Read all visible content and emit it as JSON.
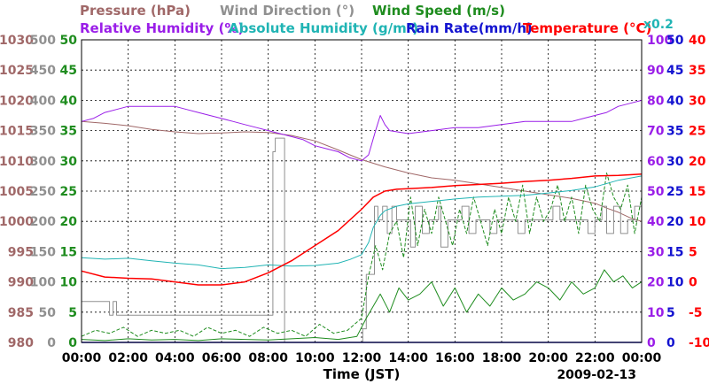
{
  "chart_data": {
    "type": "line",
    "date_label": "2009-02-13",
    "xlabel": "Time (JST)",
    "x_range": [
      0,
      24
    ],
    "x_ticks": [
      "00:00",
      "02:00",
      "04:00",
      "06:00",
      "08:00",
      "10:00",
      "12:00",
      "14:00",
      "16:00",
      "18:00",
      "20:00",
      "22:00",
      "00:00"
    ],
    "legend_rows": [
      [
        {
          "text": "Pressure (hPa)",
          "color": "#a06868"
        },
        {
          "text": "Wind Direction (°)",
          "color": "#909090"
        },
        {
          "text": "Wind Speed (m/s)",
          "color": "#1e8c1e"
        }
      ],
      [
        {
          "text": "Relative Humidity (%)",
          "color": "#9a1ee8"
        },
        {
          "text": "Absolute Humidity (g/m³)",
          "color": "#20b4b4"
        },
        {
          "text": "Rain Rate(mm/h)",
          "color": "#1414d0"
        },
        {
          "text": "Temperature (°C)",
          "color": "#ff0000"
        }
      ]
    ],
    "abs_humidity_scale_note": "x0.2",
    "axes": [
      {
        "name": "Pressure (hPa)",
        "side": "left",
        "color": "#a06868",
        "min": 980,
        "max": 1030,
        "ticks": [
          "980",
          "985",
          "990",
          "995",
          "1000",
          "1005",
          "1010",
          "1015",
          "1020",
          "1025",
          "1030"
        ]
      },
      {
        "name": "Wind Direction (°)",
        "side": "left",
        "color": "#909090",
        "min": 0,
        "max": 500,
        "ticks": [
          "0",
          "50",
          "100",
          "150",
          "200",
          "250",
          "300",
          "350",
          "400",
          "450",
          "500"
        ]
      },
      {
        "name": "Wind Speed (m/s)",
        "side": "left",
        "color": "#1e8c1e",
        "min": 0,
        "max": 50,
        "ticks": [
          "0",
          "5",
          "10",
          "15",
          "20",
          "25",
          "30",
          "35",
          "40",
          "45",
          "50"
        ]
      },
      {
        "name": "Relative Humidity (%)",
        "side": "right",
        "color": "#9a1ee8",
        "min": 0,
        "max": 100,
        "ticks": [
          "0",
          "10",
          "20",
          "30",
          "40",
          "50",
          "60",
          "70",
          "80",
          "90",
          "100"
        ]
      },
      {
        "name": "Rain Rate (mm/h)",
        "side": "right",
        "color": "#1414d0",
        "min": 0,
        "max": 50,
        "ticks": [
          "0",
          "5",
          "10",
          "15",
          "20",
          "25",
          "30",
          "35",
          "40",
          "45",
          "50"
        ]
      },
      {
        "name": "Temperature (°C)",
        "side": "right",
        "color": "#ff0000",
        "min": -10,
        "max": 40,
        "ticks": [
          "-10",
          "-5",
          "0",
          "5",
          "10",
          "15",
          "20",
          "25",
          "30",
          "35",
          "40"
        ]
      }
    ],
    "series": [
      {
        "name": "Pressure (hPa)",
        "axis": 0,
        "color": "#a06868",
        "step": false,
        "width": 1,
        "x": [
          0,
          1,
          2,
          3,
          4,
          5,
          6,
          7,
          8,
          9,
          10,
          11,
          11.5,
          12,
          13,
          14,
          15,
          16,
          17,
          18,
          19,
          20,
          21,
          22,
          22.5,
          23,
          23.5,
          24
        ],
        "y": [
          1016.5,
          1016.2,
          1015.8,
          1015.2,
          1014.8,
          1014.5,
          1014.6,
          1014.8,
          1014.7,
          1014.2,
          1013.3,
          1011.8,
          1011,
          1010.2,
          1009,
          1008,
          1007.2,
          1006.8,
          1006.2,
          1005.6,
          1005,
          1004.4,
          1003.8,
          1003,
          1002.2,
          1001.5,
          1000.6,
          1000
        ]
      },
      {
        "name": "Wind Direction (°)",
        "axis": 1,
        "color": "#909090",
        "step": true,
        "width": 1,
        "x": [
          0,
          0.9,
          1.2,
          1.35,
          1.5,
          1.7,
          8.2,
          8.3,
          8.55,
          8.7,
          12.0,
          12.05,
          12.2,
          12.55,
          12.7,
          12.9,
          13.1,
          13.3,
          13.5,
          13.8,
          14.1,
          14.3,
          14.6,
          14.9,
          15.1,
          15.3,
          15.4,
          15.7,
          16.0,
          16.3,
          16.6,
          16.9,
          17.2,
          17.5,
          17.8,
          18.1,
          18.4,
          18.7,
          19.0,
          19.3,
          19.6,
          19.9,
          20.2,
          20.5,
          20.8,
          21.1,
          21.4,
          21.7,
          22.0,
          22.3,
          22.5,
          22.8,
          23.1,
          23.4,
          23.7,
          24
        ],
        "y": [
          67.5,
          67.5,
          45,
          67.5,
          45,
          45,
          315,
          337.5,
          337.5,
          0,
          0,
          22.5,
          112.5,
          225,
          202.5,
          225,
          180,
          225,
          202.5,
          202.5,
          157.5,
          225,
          180,
          202.5,
          202.5,
          225,
          157.5,
          202.5,
          202.5,
          225,
          180,
          202.5,
          202.5,
          180,
          202.5,
          202.5,
          202.5,
          180,
          202.5,
          202.5,
          202.5,
          202.5,
          225,
          202.5,
          202.5,
          202.5,
          202.5,
          180,
          202.5,
          225,
          180,
          225,
          180,
          202.5,
          225,
          202.5
        ]
      },
      {
        "name": "Wind Speed (m/s)",
        "axis": 2,
        "color": "#1e8c1e",
        "step": false,
        "width": 1,
        "x": [
          0,
          1,
          2,
          3,
          4,
          5,
          6,
          7,
          8,
          9,
          10,
          11,
          11.8,
          12.2,
          12.5,
          12.8,
          13.2,
          13.6,
          14,
          14.5,
          15,
          15.5,
          16,
          16.5,
          17,
          17.5,
          18,
          18.5,
          19,
          19.5,
          20,
          20.5,
          21,
          21.5,
          22,
          22.4,
          22.8,
          23.2,
          23.6,
          24
        ],
        "y": [
          0.5,
          0.3,
          0.6,
          0.4,
          0.5,
          0.3,
          0.6,
          0.5,
          0.4,
          0.6,
          0.8,
          0.5,
          1,
          4,
          6,
          8,
          5,
          9,
          7,
          8,
          10,
          6,
          9,
          5,
          8,
          6,
          9,
          7,
          8,
          10,
          9,
          7,
          10,
          8,
          9,
          12,
          10,
          11,
          9,
          10
        ]
      },
      {
        "name": "Wind Speed gust (m/s)",
        "axis": 2,
        "color": "#1e8c1e",
        "step": false,
        "width": 1,
        "dash": "4,2",
        "x": [
          0,
          0.6,
          1.2,
          1.8,
          2.4,
          3,
          3.6,
          4.2,
          4.8,
          5.4,
          6,
          6.6,
          7.2,
          7.8,
          8.4,
          9,
          9.6,
          10.2,
          10.8,
          11.4,
          12,
          12.3,
          12.6,
          12.9,
          13.2,
          13.5,
          13.8,
          14.1,
          14.4,
          14.7,
          15,
          15.3,
          15.6,
          15.9,
          16.2,
          16.5,
          16.8,
          17.1,
          17.4,
          17.7,
          18,
          18.3,
          18.6,
          18.9,
          19.2,
          19.5,
          19.8,
          20.1,
          20.4,
          20.7,
          21,
          21.3,
          21.6,
          21.9,
          22.2,
          22.5,
          22.8,
          23.1,
          23.4,
          23.7,
          24
        ],
        "y": [
          1,
          2,
          1.5,
          2.5,
          1,
          2,
          1.5,
          2,
          1,
          2.5,
          1.5,
          2,
          1,
          2.5,
          1.5,
          2,
          1,
          3,
          1.5,
          2,
          4,
          11,
          16,
          12,
          18,
          20,
          14,
          24,
          16,
          22,
          18,
          24,
          20,
          16,
          22,
          18,
          24,
          20,
          16,
          22,
          18,
          24,
          20,
          26,
          18,
          24,
          20,
          22,
          26,
          20,
          24,
          18,
          26,
          22,
          20,
          28,
          24,
          22,
          26,
          18,
          24
        ]
      },
      {
        "name": "Relative Humidity (%)",
        "axis": 3,
        "color": "#9a1ee8",
        "step": false,
        "width": 1,
        "x": [
          0,
          0.5,
          1,
          1.5,
          2,
          3,
          4,
          4.5,
          5,
          5.5,
          6,
          6.5,
          7,
          7.5,
          8,
          8.5,
          9,
          9.5,
          10,
          10.5,
          11,
          11.5,
          12,
          12.3,
          12.6,
          12.8,
          13,
          13.2,
          14,
          15,
          16,
          17,
          18,
          19,
          20,
          21,
          21.5,
          22,
          22.5,
          23,
          23.5,
          24
        ],
        "y": [
          73,
          74,
          76,
          77,
          78,
          78,
          78,
          77,
          76,
          75,
          74,
          73,
          72,
          71,
          70,
          69,
          68,
          67,
          65,
          64,
          63,
          61,
          60,
          62,
          70,
          75,
          72,
          70,
          69,
          70,
          71,
          71,
          72,
          73,
          73,
          73,
          74,
          75,
          76,
          78,
          79,
          80
        ]
      },
      {
        "name": "Absolute Humidity (g/m³) x0.2",
        "axis": 3,
        "color": "#20b4b4",
        "step": false,
        "width": 1,
        "x": [
          0,
          1,
          2,
          3,
          4,
          5,
          6,
          7,
          8,
          9,
          10,
          11,
          11.5,
          12,
          12.3,
          12.5,
          12.8,
          13,
          13.5,
          14,
          15,
          16,
          17,
          18,
          19,
          20,
          21,
          22,
          23,
          24
        ],
        "y": [
          28,
          27.5,
          27.8,
          27,
          26.2,
          25.6,
          24.4,
          24.8,
          25.6,
          25.2,
          25.4,
          26.2,
          27.4,
          29,
          33,
          38,
          42,
          43.5,
          45,
          45.8,
          46.6,
          47.4,
          48,
          48.3,
          48.6,
          49.4,
          50.2,
          51.4,
          53.6,
          55
        ]
      },
      {
        "name": "Rain Rate (mm/h)",
        "axis": 4,
        "color": "#1414d0",
        "step": false,
        "width": 1.5,
        "x": [
          0,
          24
        ],
        "y": [
          0,
          0
        ]
      },
      {
        "name": "Temperature (°C)",
        "axis": 5,
        "color": "#ff0000",
        "step": false,
        "width": 1.5,
        "x": [
          0,
          1,
          2,
          3,
          4,
          5,
          6,
          7,
          8,
          9,
          10,
          11,
          12,
          12.5,
          13,
          13.5,
          14,
          15,
          16,
          17,
          18,
          19,
          20,
          21,
          22,
          23,
          24
        ],
        "y": [
          1.8,
          0.8,
          0.6,
          0.5,
          0,
          -0.5,
          -0.5,
          0,
          1.5,
          3.5,
          6,
          8.5,
          12,
          14,
          15,
          15.3,
          15.4,
          15.6,
          15.9,
          16.1,
          16.3,
          16.6,
          16.8,
          17.1,
          17.5,
          17.6,
          17.8
        ]
      }
    ]
  }
}
